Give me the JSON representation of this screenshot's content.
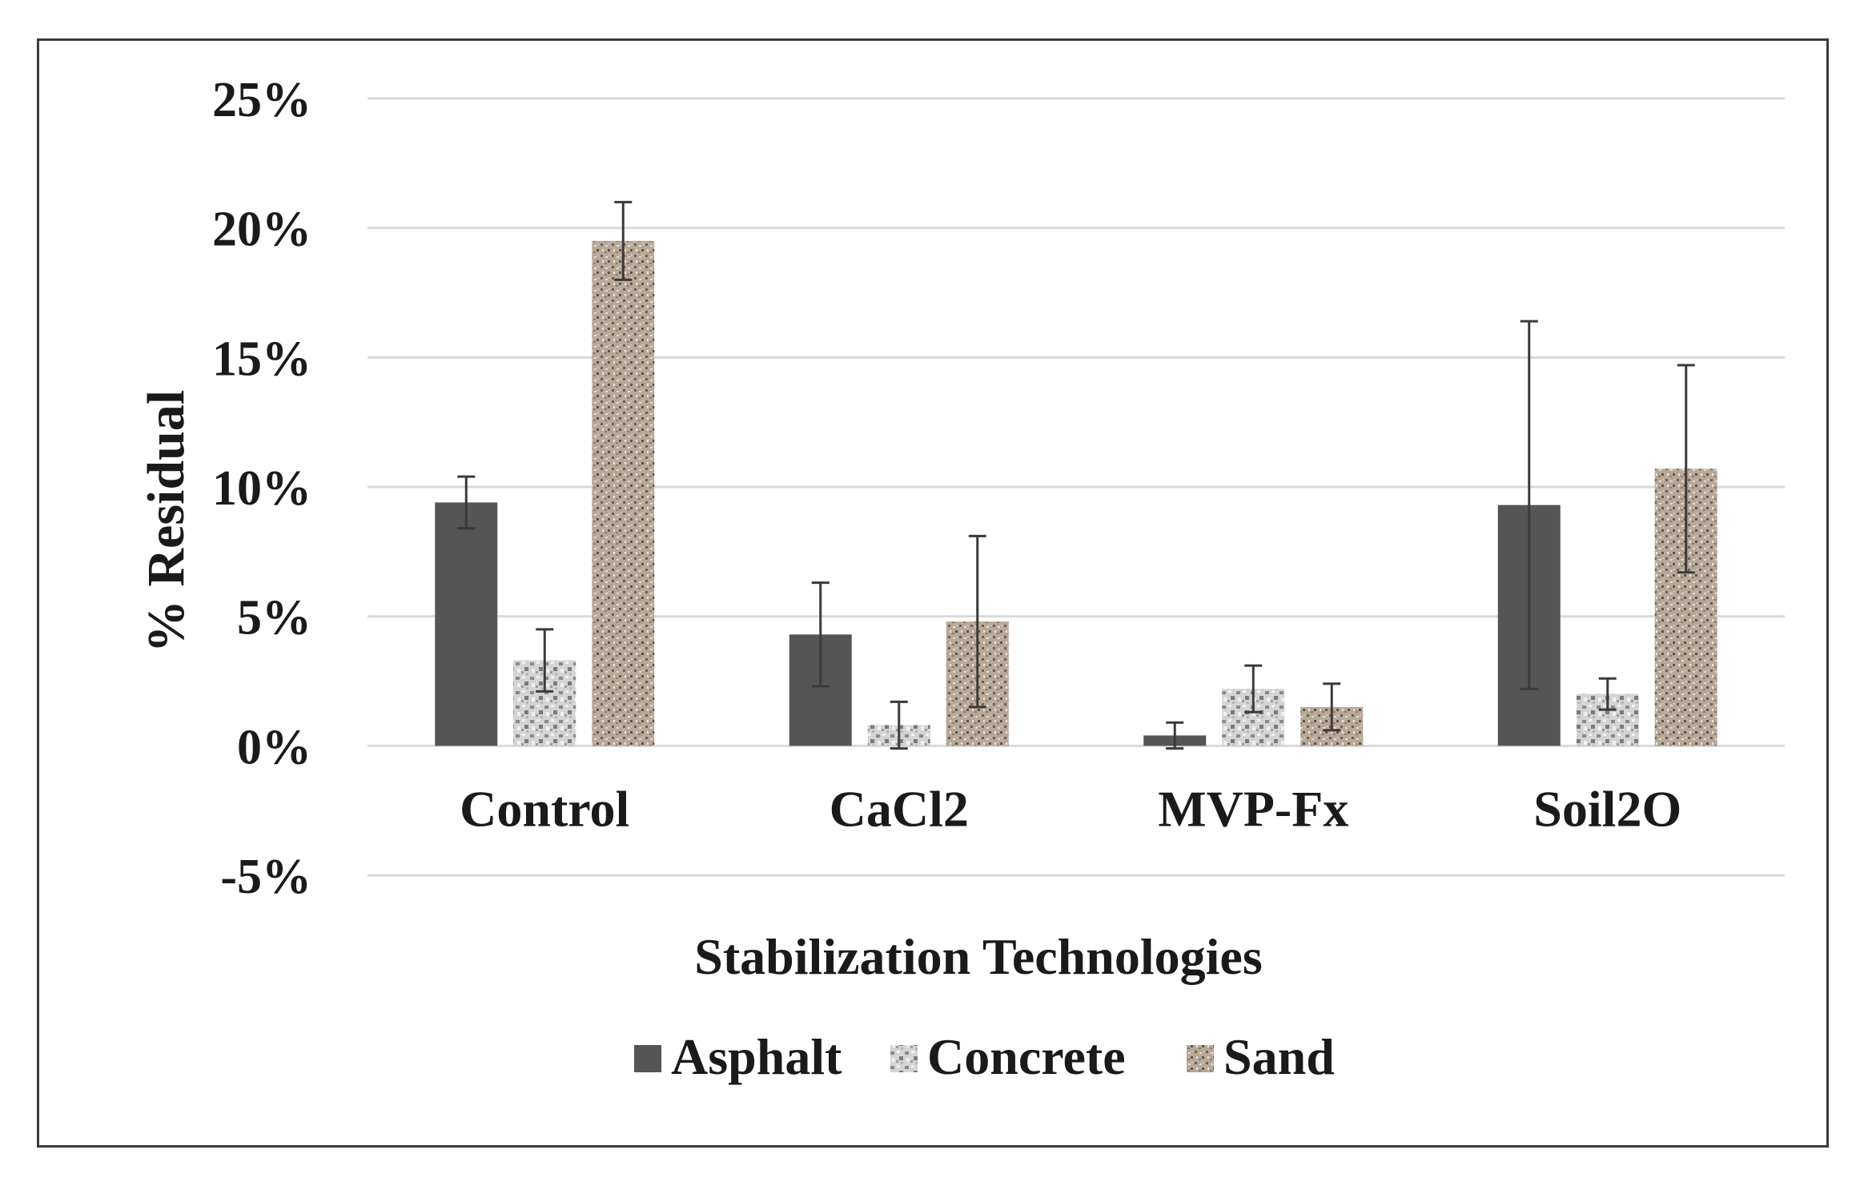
{
  "chart_data": {
    "type": "bar",
    "title": "",
    "xlabel": "Stabilization Technologies",
    "ylabel": "% Residual",
    "categories": [
      "Control",
      "CaCl2",
      "MVP-Fx",
      "Soil2O"
    ],
    "series": [
      {
        "name": "Asphalt",
        "values": [
          9.4,
          4.3,
          0.4,
          9.3
        ],
        "errors": [
          1.0,
          2.0,
          0.5,
          7.1
        ],
        "color": "#555555",
        "pattern": "solid"
      },
      {
        "name": "Concrete",
        "values": [
          3.3,
          0.8,
          2.2,
          2.0
        ],
        "errors": [
          1.2,
          0.9,
          0.9,
          0.6
        ],
        "color": "#c8c8c8",
        "pattern": "granite"
      },
      {
        "name": "Sand",
        "values": [
          19.5,
          4.8,
          1.5,
          10.7
        ],
        "errors": [
          1.5,
          3.3,
          0.9,
          4.0
        ],
        "color": "#a89a8c",
        "pattern": "sand"
      }
    ],
    "ylim": [
      -5,
      25
    ],
    "yticks": [
      -5,
      0,
      5,
      10,
      15,
      20,
      25
    ],
    "ytick_labels": [
      "-5%",
      "0%",
      "5%",
      "10%",
      "15%",
      "20%",
      "25%"
    ],
    "grid": true,
    "legend_position": "bottom"
  }
}
